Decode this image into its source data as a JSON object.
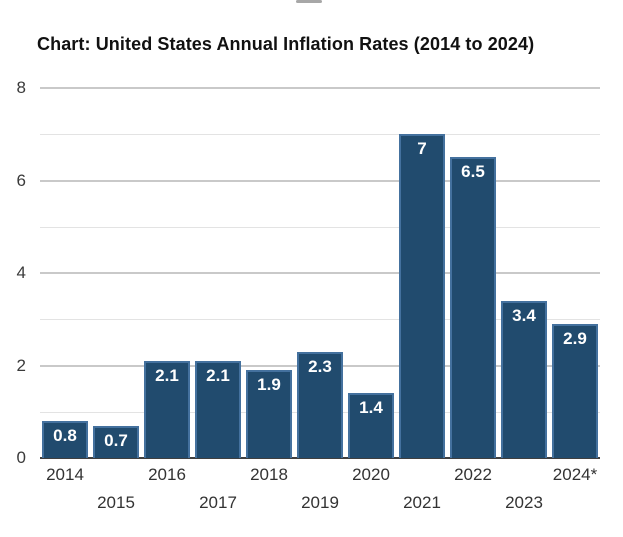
{
  "top_fragment": {
    "note": "cropped descender of text cut off above chart"
  },
  "chart_data": {
    "type": "bar",
    "title": "Chart: United States Annual Inflation Rates (2014 to 2024)",
    "categories": [
      "2014",
      "2015",
      "2016",
      "2017",
      "2018",
      "2019",
      "2020",
      "2021",
      "2022",
      "2023",
      "2024*"
    ],
    "values": [
      0.8,
      0.7,
      2.1,
      2.1,
      1.9,
      2.3,
      1.4,
      7,
      6.5,
      3.4,
      2.9
    ],
    "value_labels": [
      "0.8",
      "0.7",
      "2.1",
      "2.1",
      "1.9",
      "2.3",
      "1.4",
      "7",
      "6.5",
      "3.4",
      "2.9"
    ],
    "xlabel": "",
    "ylabel": "",
    "ylim": [
      0,
      8
    ],
    "ytick_values": [
      0,
      2,
      4,
      6,
      8
    ],
    "ytick_labels": [
      "0",
      "2",
      "4",
      "6",
      "8"
    ],
    "gridline_step": 1,
    "grid_on": true,
    "legend": "none",
    "colors": {
      "bar_fill": "#214b6e",
      "bar_border": "#44719e",
      "major_gridline": "#c9c9c9",
      "minor_gridline": "#e3e3e3",
      "axis_line": "#3f3f3f",
      "tick_label": "#333333",
      "value_label": "#ffffff",
      "title": "#111111"
    }
  }
}
